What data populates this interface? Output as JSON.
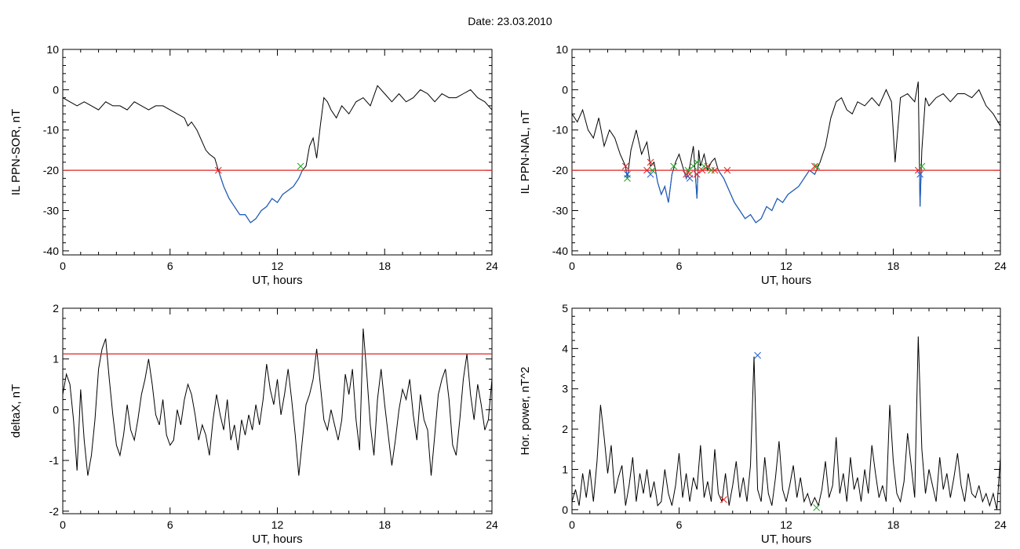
{
  "figure": {
    "title": "Date:  23.03.2010"
  },
  "chart_data": [
    {
      "type": "line",
      "xlabel": "UT, hours",
      "ylabel": "IL PPN-SOR, nT",
      "xlim": [
        0,
        24
      ],
      "ylim": [
        -41,
        10
      ],
      "xticks": [
        0,
        6,
        12,
        18,
        24
      ],
      "yticks": [
        10,
        0,
        -10,
        -20,
        -30,
        -40
      ],
      "threshold": -20,
      "below_color": "#1f5fbf",
      "series": [
        {
          "x": [
            0,
            0.4,
            0.8,
            1.2,
            1.6,
            2.0,
            2.4,
            2.8,
            3.2,
            3.6,
            4.0,
            4.4,
            4.8,
            5.2,
            5.6,
            6.0,
            6.4,
            6.8,
            7.0,
            7.2,
            7.5,
            7.8,
            8.0,
            8.2,
            8.5,
            8.7,
            9.0,
            9.3,
            9.6,
            9.9,
            10.2,
            10.5,
            10.8,
            11.1,
            11.4,
            11.7,
            12.0,
            12.3,
            12.6,
            12.9,
            13.2,
            13.4,
            13.6,
            13.8,
            14.0,
            14.2,
            14.4,
            14.6,
            14.8,
            15.0,
            15.3,
            15.6,
            16.0,
            16.4,
            16.8,
            17.2,
            17.6,
            18.0,
            18.4,
            18.8,
            19.2,
            19.6,
            20.0,
            20.4,
            20.8,
            21.2,
            21.6,
            22.0,
            22.4,
            22.8,
            23.2,
            23.6,
            24.0
          ],
          "y": [
            -2,
            -3,
            -4,
            -3,
            -4,
            -5,
            -3,
            -4,
            -4,
            -5,
            -3,
            -4,
            -5,
            -4,
            -4,
            -5,
            -6,
            -7,
            -9,
            -8,
            -10,
            -13,
            -15,
            -16,
            -17,
            -20,
            -24,
            -27,
            -29,
            -31,
            -31,
            -33,
            -32,
            -30,
            -29,
            -27,
            -28,
            -26,
            -25,
            -24,
            -22,
            -20,
            -19,
            -14,
            -12,
            -17,
            -9,
            -2,
            -3,
            -5,
            -7,
            -4,
            -6,
            -3,
            -2,
            -4,
            1,
            -1,
            -3,
            -1,
            -3,
            -2,
            0,
            -1,
            -3,
            -1,
            -2,
            -2,
            -1,
            0,
            -2,
            -3,
            -5
          ]
        }
      ],
      "markers": {
        "red_x": [
          [
            8.7,
            -20
          ]
        ],
        "green_x": [
          [
            13.3,
            -19
          ]
        ]
      }
    },
    {
      "type": "line",
      "xlabel": "UT, hours",
      "ylabel": "IL PPN-NAL, nT",
      "xlim": [
        0,
        24
      ],
      "ylim": [
        -41,
        10
      ],
      "xticks": [
        0,
        6,
        12,
        18,
        24
      ],
      "yticks": [
        10,
        0,
        -10,
        -20,
        -30,
        -40
      ],
      "threshold": -20,
      "below_color": "#1f5fbf",
      "series": [
        {
          "x": [
            0,
            0.3,
            0.6,
            0.9,
            1.2,
            1.5,
            1.8,
            2.1,
            2.4,
            2.7,
            3.0,
            3.1,
            3.3,
            3.6,
            3.9,
            4.2,
            4.4,
            4.6,
            4.8,
            5.0,
            5.2,
            5.4,
            5.6,
            5.8,
            6.0,
            6.2,
            6.4,
            6.6,
            6.8,
            7.0,
            7.1,
            7.2,
            7.4,
            7.6,
            7.8,
            8.0,
            8.2,
            8.5,
            8.8,
            9.1,
            9.4,
            9.7,
            10.0,
            10.3,
            10.6,
            10.9,
            11.2,
            11.5,
            11.8,
            12.1,
            12.4,
            12.7,
            13.0,
            13.3,
            13.6,
            13.9,
            14.2,
            14.5,
            14.8,
            15.1,
            15.4,
            15.7,
            16.0,
            16.4,
            16.8,
            17.2,
            17.6,
            17.9,
            18.1,
            18.4,
            18.8,
            19.2,
            19.4,
            19.5,
            19.6,
            19.8,
            20.0,
            20.4,
            20.8,
            21.2,
            21.6,
            22.0,
            22.4,
            22.8,
            23.2,
            23.6,
            24.0
          ],
          "y": [
            -6,
            -8,
            -5,
            -10,
            -12,
            -7,
            -14,
            -10,
            -12,
            -16,
            -19,
            -22,
            -15,
            -10,
            -16,
            -13,
            -19,
            -18,
            -23,
            -26,
            -24,
            -28,
            -21,
            -18,
            -16,
            -19,
            -22,
            -19,
            -14,
            -27,
            -15,
            -19,
            -16,
            -20,
            -18,
            -17,
            -20,
            -22,
            -25,
            -28,
            -30,
            -32,
            -31,
            -33,
            -32,
            -29,
            -30,
            -27,
            -28,
            -26,
            -25,
            -24,
            -22,
            -20,
            -21,
            -18,
            -14,
            -7,
            -3,
            -2,
            -5,
            -6,
            -3,
            -4,
            -2,
            -4,
            0,
            -3,
            -18,
            -2,
            -1,
            -3,
            2,
            -29,
            -15,
            -2,
            -4,
            -2,
            -1,
            -3,
            -1,
            -1,
            -2,
            0,
            -4,
            -6,
            -9
          ]
        }
      ],
      "markers": {
        "red_x": [
          [
            3.0,
            -19
          ],
          [
            4.2,
            -20
          ],
          [
            4.4,
            -18
          ],
          [
            6.4,
            -21
          ],
          [
            6.6,
            -21
          ],
          [
            7.0,
            -21
          ],
          [
            7.3,
            -20
          ],
          [
            7.6,
            -19
          ],
          [
            8.0,
            -20
          ],
          [
            8.7,
            -20
          ],
          [
            13.6,
            -19
          ],
          [
            19.4,
            -20
          ]
        ],
        "green_x": [
          [
            3.1,
            -22
          ],
          [
            4.5,
            -20
          ],
          [
            5.7,
            -19
          ],
          [
            6.5,
            -20
          ],
          [
            6.8,
            -19
          ],
          [
            7.0,
            -18
          ],
          [
            7.4,
            -19
          ],
          [
            7.8,
            -20
          ],
          [
            13.7,
            -19
          ],
          [
            19.6,
            -19
          ]
        ],
        "blue_x": [
          [
            3.1,
            -21
          ],
          [
            4.4,
            -21
          ],
          [
            6.6,
            -22
          ],
          [
            19.5,
            -21
          ]
        ]
      }
    },
    {
      "type": "line",
      "xlabel": "UT, hours",
      "ylabel": "deltaX, nT",
      "xlim": [
        0,
        24
      ],
      "ylim": [
        -2.05,
        2
      ],
      "xticks": [
        0,
        6,
        12,
        18,
        24
      ],
      "yticks": [
        2,
        1,
        0,
        -1,
        -2
      ],
      "threshold": 1.1,
      "series": [
        {
          "x": [
            0,
            0.2,
            0.4,
            0.6,
            0.8,
            1.0,
            1.2,
            1.4,
            1.6,
            1.8,
            2.0,
            2.2,
            2.4,
            2.6,
            2.8,
            3.0,
            3.2,
            3.4,
            3.6,
            3.8,
            4.0,
            4.2,
            4.4,
            4.6,
            4.8,
            5.0,
            5.2,
            5.4,
            5.6,
            5.8,
            6.0,
            6.2,
            6.4,
            6.6,
            6.8,
            7.0,
            7.2,
            7.4,
            7.6,
            7.8,
            8.0,
            8.2,
            8.4,
            8.6,
            8.8,
            9.0,
            9.2,
            9.4,
            9.6,
            9.8,
            10.0,
            10.2,
            10.4,
            10.6,
            10.8,
            11.0,
            11.2,
            11.4,
            11.6,
            11.8,
            12.0,
            12.2,
            12.4,
            12.6,
            12.8,
            13.0,
            13.2,
            13.4,
            13.6,
            13.8,
            14.0,
            14.2,
            14.4,
            14.6,
            14.8,
            15.0,
            15.2,
            15.4,
            15.6,
            15.8,
            16.0,
            16.2,
            16.4,
            16.6,
            16.8,
            17.0,
            17.2,
            17.4,
            17.6,
            17.8,
            18.0,
            18.2,
            18.4,
            18.6,
            18.8,
            19.0,
            19.2,
            19.4,
            19.6,
            19.8,
            20.0,
            20.2,
            20.4,
            20.6,
            20.8,
            21.0,
            21.2,
            21.4,
            21.6,
            21.8,
            22.0,
            22.2,
            22.4,
            22.6,
            22.8,
            23.0,
            23.2,
            23.4,
            23.6,
            23.8,
            24.0
          ],
          "y": [
            0.3,
            0.7,
            0.5,
            -0.2,
            -1.2,
            0.4,
            -0.6,
            -1.3,
            -0.9,
            -0.2,
            0.8,
            1.2,
            1.4,
            0.6,
            -0.1,
            -0.7,
            -0.9,
            -0.5,
            0.1,
            -0.4,
            -0.6,
            -0.2,
            0.3,
            0.6,
            1.0,
            0.5,
            -0.1,
            -0.3,
            0.2,
            -0.5,
            -0.7,
            -0.6,
            0.0,
            -0.3,
            0.2,
            0.5,
            0.3,
            -0.1,
            -0.6,
            -0.3,
            -0.5,
            -0.9,
            -0.2,
            0.3,
            -0.1,
            -0.4,
            0.2,
            -0.6,
            -0.3,
            -0.8,
            -0.2,
            -0.5,
            -0.1,
            -0.4,
            0.1,
            -0.3,
            0.2,
            0.9,
            0.4,
            0.1,
            0.6,
            -0.1,
            0.3,
            0.8,
            0.2,
            -0.5,
            -1.3,
            -0.6,
            0.1,
            0.3,
            0.6,
            1.2,
            0.5,
            -0.2,
            -0.4,
            0.0,
            -0.3,
            -0.6,
            -0.2,
            0.7,
            0.3,
            0.8,
            -0.2,
            -0.8,
            1.6,
            0.7,
            -0.3,
            -0.9,
            0.2,
            0.8,
            0.1,
            -0.5,
            -1.1,
            -0.6,
            0.0,
            0.4,
            0.2,
            0.6,
            -0.1,
            -0.6,
            0.3,
            -0.2,
            -0.4,
            -1.3,
            -0.5,
            0.3,
            0.6,
            0.8,
            0.2,
            -0.7,
            -0.9,
            -0.2,
            0.6,
            1.1,
            0.3,
            -0.2,
            0.5,
            0.1,
            -0.4,
            -0.2,
            0.6
          ]
        }
      ]
    },
    {
      "type": "line",
      "xlabel": "UT, hours",
      "ylabel": "Hor. power, nT^2",
      "xlim": [
        0,
        24
      ],
      "ylim": [
        -0.1,
        5
      ],
      "xticks": [
        0,
        6,
        12,
        18,
        24
      ],
      "yticks": [
        5,
        4,
        3,
        2,
        1,
        0
      ],
      "series": [
        {
          "x": [
            0,
            0.2,
            0.4,
            0.6,
            0.8,
            1.0,
            1.2,
            1.4,
            1.6,
            1.8,
            2.0,
            2.2,
            2.4,
            2.6,
            2.8,
            3.0,
            3.2,
            3.4,
            3.6,
            3.8,
            4.0,
            4.2,
            4.4,
            4.6,
            4.8,
            5.0,
            5.2,
            5.4,
            5.6,
            5.8,
            6.0,
            6.2,
            6.4,
            6.6,
            6.8,
            7.0,
            7.2,
            7.4,
            7.6,
            7.8,
            8.0,
            8.2,
            8.4,
            8.6,
            8.8,
            9.0,
            9.2,
            9.4,
            9.6,
            9.8,
            10.0,
            10.2,
            10.4,
            10.6,
            10.8,
            11.0,
            11.2,
            11.4,
            11.6,
            11.8,
            12.0,
            12.2,
            12.4,
            12.6,
            12.8,
            13.0,
            13.2,
            13.4,
            13.6,
            13.8,
            14.0,
            14.2,
            14.4,
            14.6,
            14.8,
            15.0,
            15.2,
            15.4,
            15.6,
            15.8,
            16.0,
            16.2,
            16.4,
            16.6,
            16.8,
            17.0,
            17.2,
            17.4,
            17.6,
            17.8,
            18.0,
            18.2,
            18.4,
            18.6,
            18.8,
            19.0,
            19.2,
            19.4,
            19.6,
            19.8,
            20.0,
            20.2,
            20.4,
            20.6,
            20.8,
            21.0,
            21.2,
            21.4,
            21.6,
            21.8,
            22.0,
            22.2,
            22.4,
            22.6,
            22.8,
            23.0,
            23.2,
            23.4,
            23.6,
            23.8,
            24.0
          ],
          "y": [
            0.2,
            0.5,
            0.1,
            0.9,
            0.3,
            1.0,
            0.2,
            1.2,
            2.6,
            1.8,
            0.9,
            1.6,
            0.4,
            0.8,
            1.1,
            0.1,
            0.6,
            1.3,
            0.2,
            0.9,
            0.4,
            1.0,
            0.3,
            0.7,
            0.1,
            0.2,
            1.0,
            0.4,
            0.1,
            0.6,
            1.4,
            0.3,
            0.9,
            0.2,
            0.8,
            0.5,
            1.6,
            0.3,
            0.7,
            0.2,
            1.5,
            0.4,
            0.2,
            0.9,
            0.1,
            0.6,
            1.2,
            0.3,
            0.8,
            0.2,
            1.1,
            3.8,
            0.5,
            0.2,
            1.3,
            0.4,
            0.1,
            0.8,
            1.7,
            0.5,
            0.2,
            0.6,
            1.1,
            0.3,
            0.8,
            0.2,
            0.4,
            0.1,
            0.3,
            0.1,
            0.5,
            1.2,
            0.3,
            0.6,
            1.8,
            0.4,
            0.9,
            0.2,
            1.3,
            0.5,
            0.8,
            0.2,
            1.0,
            0.4,
            1.6,
            0.9,
            0.3,
            0.6,
            0.2,
            2.6,
            1.2,
            0.4,
            0.2,
            0.7,
            1.9,
            1.1,
            0.3,
            4.3,
            1.5,
            0.4,
            1.0,
            0.6,
            0.2,
            1.3,
            0.5,
            0.9,
            0.3,
            0.8,
            1.4,
            0.6,
            0.2,
            0.9,
            0.4,
            0.3,
            0.6,
            0.2,
            0.4,
            0.1,
            0.4,
            0.0,
            1.3
          ]
        }
      ],
      "markers": {
        "blue_x": [
          [
            10.4,
            3.83
          ]
        ],
        "red_x": [
          [
            8.5,
            0.25
          ]
        ],
        "green_x": [
          [
            13.7,
            0.05
          ]
        ]
      }
    }
  ]
}
